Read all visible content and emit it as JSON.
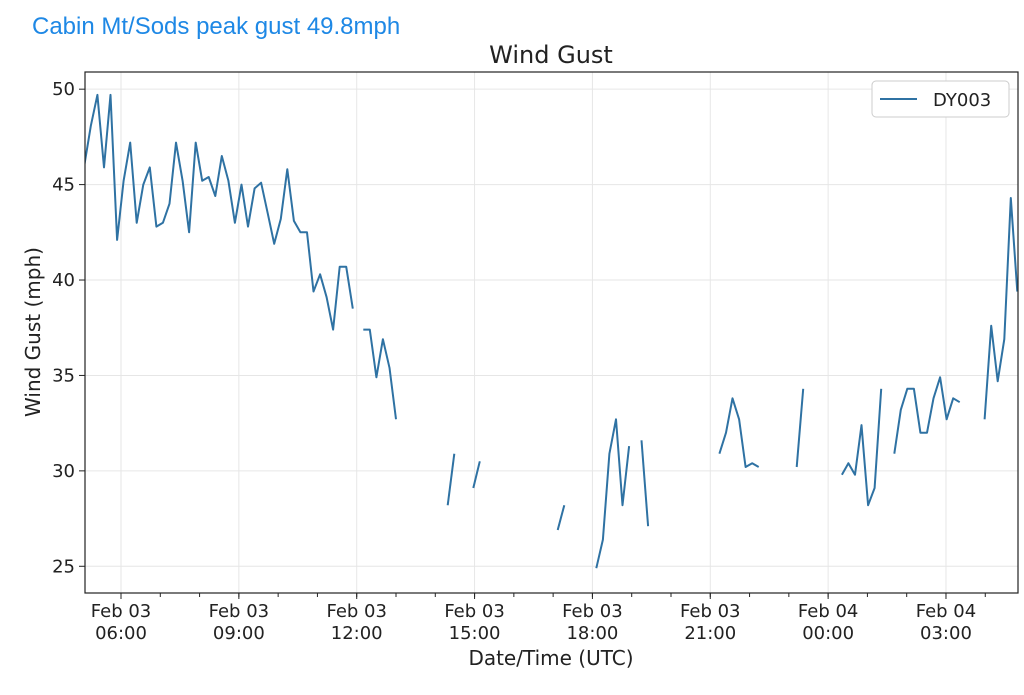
{
  "header": {
    "text": "Cabin Mt/Sods peak gust 49.8mph"
  },
  "chart_data": {
    "type": "line",
    "title": "Wind Gust",
    "xlabel": "Date/Time (UTC)",
    "ylabel": "Wind Gust (mph)",
    "x_units": "minutes since Feb 03 00:00 UTC",
    "xlim": [
      305,
      1730
    ],
    "ylim": [
      23.6,
      50.9
    ],
    "grid": true,
    "legend": {
      "position": "top-right",
      "entries": [
        "DY003"
      ]
    },
    "color": "#2f72a3",
    "x_ticks": [
      {
        "value": 360,
        "line1": "Feb 03",
        "line2": "06:00"
      },
      {
        "value": 540,
        "line1": "Feb 03",
        "line2": "09:00"
      },
      {
        "value": 720,
        "line1": "Feb 03",
        "line2": "12:00"
      },
      {
        "value": 900,
        "line1": "Feb 03",
        "line2": "15:00"
      },
      {
        "value": 1080,
        "line1": "Feb 03",
        "line2": "18:00"
      },
      {
        "value": 1260,
        "line1": "Feb 03",
        "line2": "21:00"
      },
      {
        "value": 1440,
        "line1": "Feb 04",
        "line2": "00:00"
      },
      {
        "value": 1620,
        "line1": "Feb 04",
        "line2": "03:00"
      }
    ],
    "y_ticks": [
      "25",
      "30",
      "35",
      "40",
      "45",
      "50"
    ],
    "series": [
      {
        "name": "DY003",
        "step_min": 10,
        "segments": [
          {
            "start": 304,
            "values": [
              46.0,
              48.1,
              49.7,
              45.9,
              49.7,
              42.1,
              45.2,
              47.2,
              43.0,
              45.0,
              45.9,
              42.8,
              43.0,
              44.0,
              47.2,
              45.2,
              42.5,
              47.2,
              45.2,
              45.4,
              44.4,
              46.5,
              45.2,
              43.0,
              45.0,
              42.8,
              44.8,
              45.1,
              43.5,
              41.9,
              43.2,
              45.8,
              43.1,
              42.5,
              42.5,
              39.4,
              40.3,
              39.1,
              37.4,
              40.7,
              40.7,
              38.5
            ]
          },
          {
            "start": 730,
            "values": [
              37.4,
              37.4,
              34.9,
              36.9,
              35.4,
              32.7
            ]
          },
          {
            "start": 859,
            "values": [
              28.2,
              30.9
            ]
          },
          {
            "start": 898,
            "values": [
              29.1,
              30.5
            ]
          },
          {
            "start": 1027,
            "values": [
              26.9,
              28.2
            ]
          },
          {
            "start": 1086,
            "values": [
              24.9,
              26.4,
              30.9,
              32.7,
              28.2,
              31.3
            ]
          },
          {
            "start": 1155,
            "values": [
              31.6,
              27.1
            ]
          },
          {
            "start": 1274,
            "values": [
              30.9,
              32.0,
              33.8,
              32.7,
              30.2,
              30.4,
              30.2
            ]
          },
          {
            "start": 1392,
            "values": [
              30.2,
              34.3
            ]
          },
          {
            "start": 1461,
            "values": [
              29.8,
              30.4,
              29.8,
              32.4,
              28.2,
              29.1,
              34.3
            ]
          },
          {
            "start": 1541,
            "values": [
              30.9,
              33.2,
              34.3,
              34.3,
              32.0,
              32.0,
              33.8,
              34.9,
              32.7,
              33.8,
              33.6
            ]
          },
          {
            "start": 1679,
            "values": [
              32.7,
              37.6,
              34.7,
              36.9,
              44.3,
              39.4
            ]
          }
        ]
      }
    ]
  }
}
